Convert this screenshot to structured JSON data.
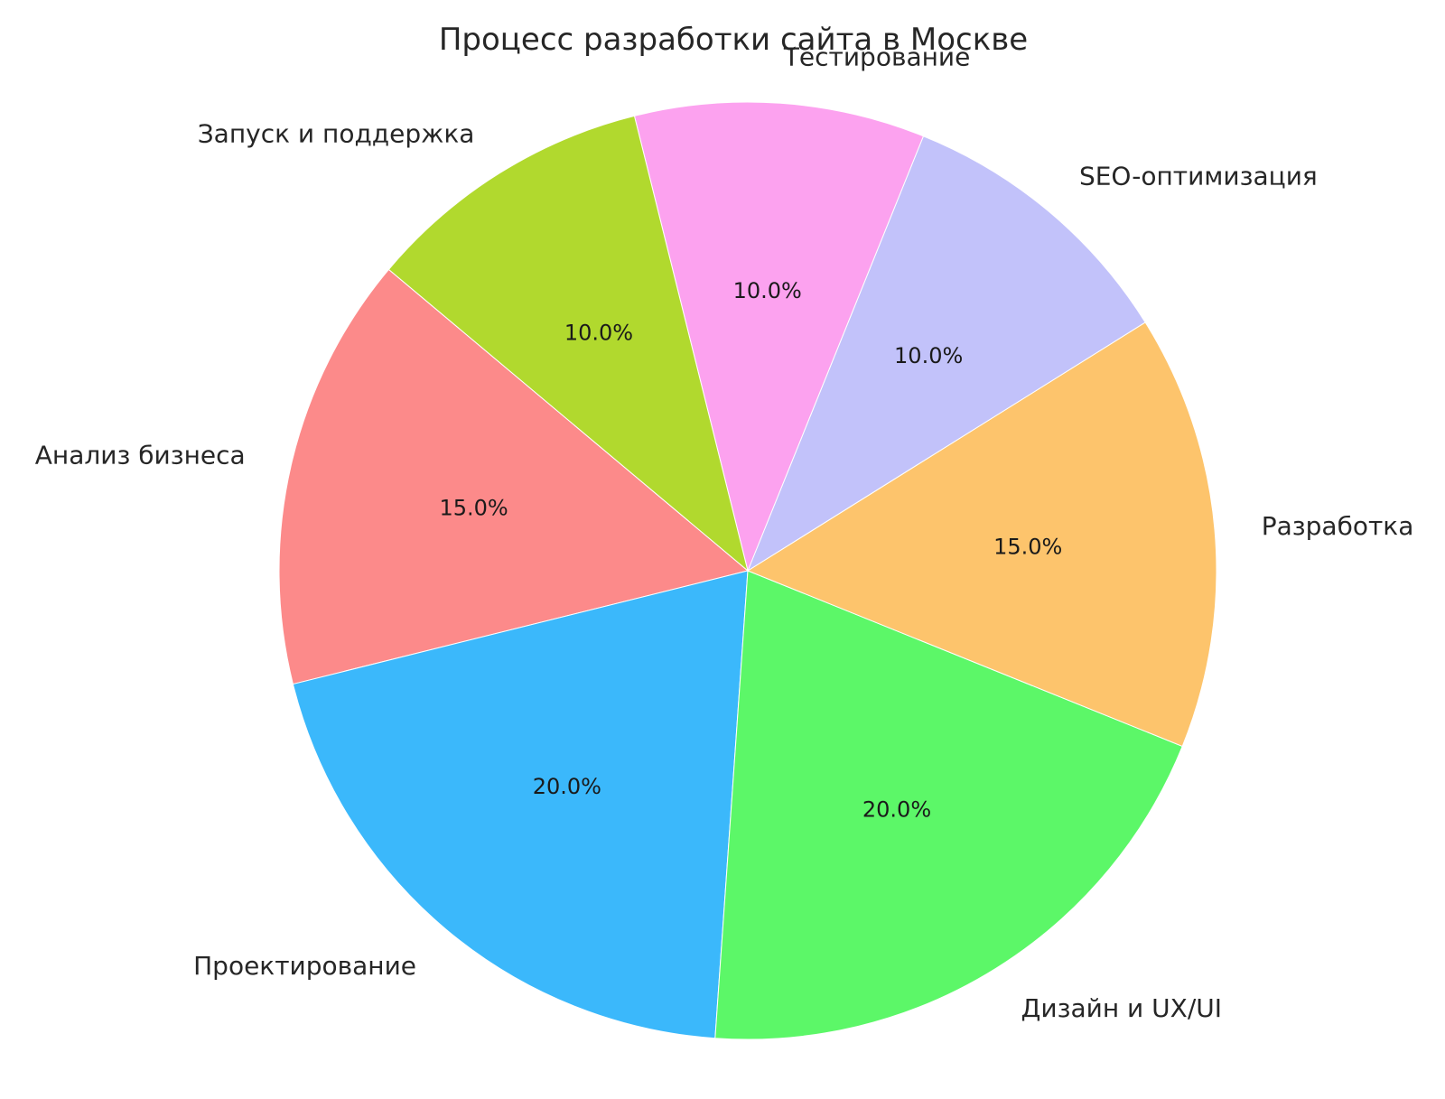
{
  "figure": {
    "background_color": "#ffffff",
    "text_color": "#262626"
  },
  "chart_data": {
    "type": "pie",
    "title": "Процесс разработки сайта в Москве",
    "labels": [
      "Анализ бизнеса",
      "Проектирование",
      "Дизайн и UX/UI",
      "Разработка",
      "SEO-оптимизация",
      "Тестирование",
      "Запуск и поддержка"
    ],
    "values": [
      15,
      20,
      20,
      15,
      10,
      10,
      10
    ],
    "pct_labels": [
      "15.0%",
      "20.0%",
      "20.0%",
      "15.0%",
      "10.0%",
      "10.0%",
      "10.0%"
    ],
    "colors": [
      "#FC8A8A",
      "#3BB8FB",
      "#5CF768",
      "#FDC46C",
      "#C2C2FA",
      "#FCA2EF",
      "#B1D92E"
    ],
    "start_angle": 140,
    "counterclock": true,
    "legend": "none",
    "grid": "off"
  }
}
